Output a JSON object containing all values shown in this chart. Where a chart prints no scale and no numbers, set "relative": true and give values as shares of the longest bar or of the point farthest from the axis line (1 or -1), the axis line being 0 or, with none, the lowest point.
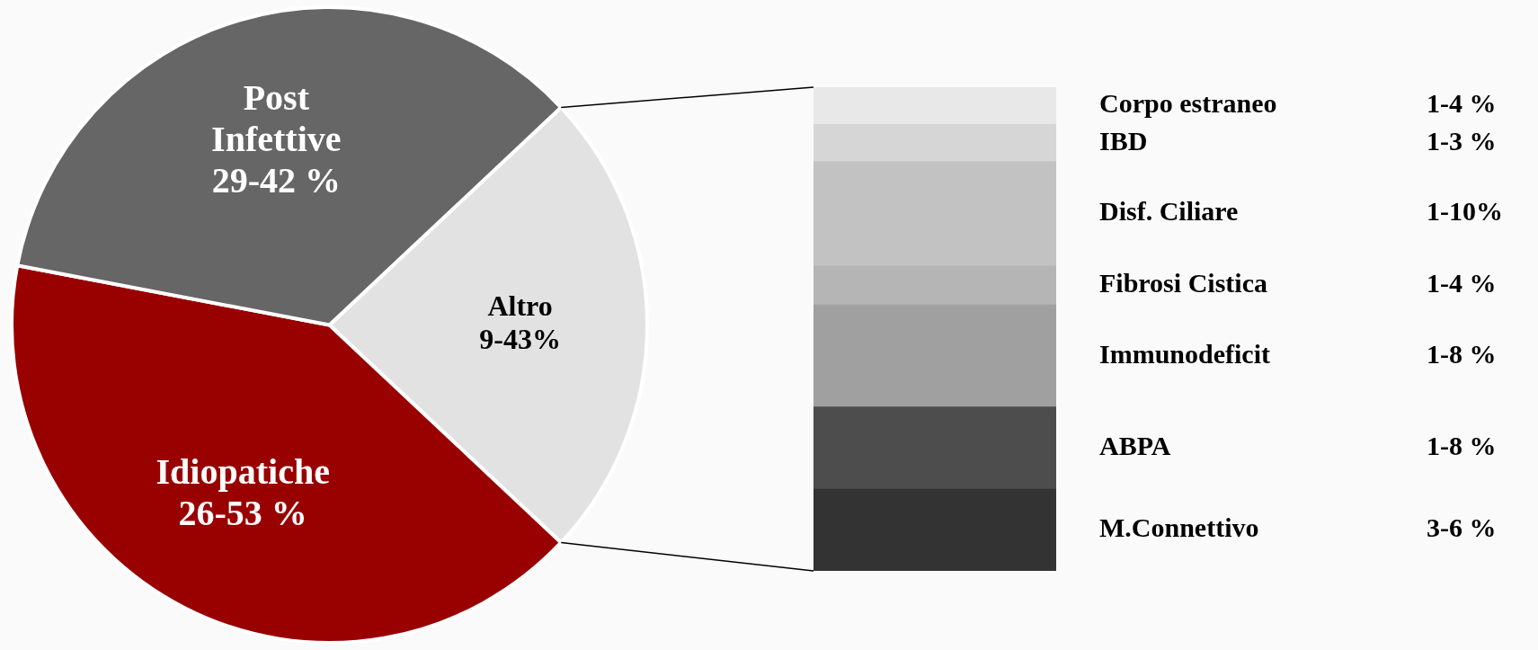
{
  "chart_data": [
    {
      "type": "pie",
      "categories": [
        "Altro 9-43%",
        "Idiopatiche 26-53 %",
        "Post Infettive 29-42 %"
      ],
      "values": [
        24,
        41,
        35
      ],
      "colors": [
        "#e2e2e2",
        "#990000",
        "#666666"
      ]
    },
    {
      "type": "bar",
      "stacked": true,
      "relative": true,
      "categories": [
        null
      ],
      "series": [
        {
          "name": "M.Connettivo",
          "color": "#333333",
          "values": [
            0.169
          ]
        },
        {
          "name": "ABPA",
          "color": "#4d4d4d",
          "values": [
            0.17
          ]
        },
        {
          "name": "Immunodeficit",
          "color": "#a0a0a0",
          "values": [
            0.211
          ]
        },
        {
          "name": "Fibrosi Cistica",
          "color": "#b5b5b5",
          "values": [
            0.081
          ]
        },
        {
          "name": "Disf. Ciliare",
          "color": "#c2c2c2",
          "values": [
            0.215
          ]
        },
        {
          "name": "IBD",
          "color": "#d6d6d6",
          "values": [
            0.077
          ]
        },
        {
          "name": "Corpo estraneo",
          "color": "#e8e8e8",
          "values": [
            0.077
          ]
        }
      ],
      "annotations": [
        "1-4 %",
        "1-3 %",
        "1-10%",
        "1-4 %",
        "1-8 %",
        "1-8 %",
        "3-6 %"
      ]
    }
  ]
}
